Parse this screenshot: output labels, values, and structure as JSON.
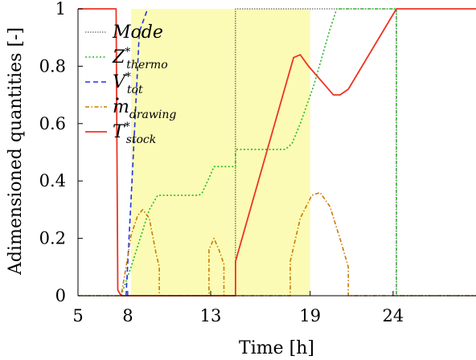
{
  "chart_data": {
    "type": "line",
    "title": "",
    "xlabel": "Time [h]",
    "ylabel": "Adimensioned quantities [-]",
    "xlim": [
      5,
      29
    ],
    "ylim": [
      0,
      1
    ],
    "xticks": [
      5,
      8,
      13,
      19,
      24
    ],
    "yticks": [
      0,
      0.2,
      0.4,
      0.6,
      0.8,
      1
    ],
    "ytick_labels": [
      "0",
      "0.2",
      "0.4",
      "0.6",
      "0.8",
      "1"
    ],
    "grid": false,
    "legend_position": "top-left",
    "highlight_band": {
      "x_range": [
        8.2,
        19
      ],
      "color": "#fbfbb5"
    },
    "series": [
      {
        "name": "Mode",
        "legend_main": "Mode",
        "legend_sub": "",
        "legend_dot": false,
        "color": "#000000",
        "dash": "1.5,1.5",
        "width": 0.8,
        "x": [
          5,
          7.5,
          7.5,
          14.5,
          14.5,
          24.2,
          24.2,
          29
        ],
        "y": [
          0,
          0,
          0,
          0,
          1,
          1,
          0,
          0
        ]
      },
      {
        "name": "Z*_thermo",
        "legend_main": "Z",
        "legend_sub": "thermo",
        "legend_dot": false,
        "color": "#22bb22",
        "dash": "2,2.5",
        "width": 1.6,
        "x": [
          5,
          7.6,
          8.2,
          9.3,
          9.8,
          12.3,
          12.5,
          12.9,
          13.2,
          14.5,
          14.5,
          17.5,
          17.9,
          18.4,
          19.2,
          20.2,
          20.6,
          24.2,
          24.2,
          29
        ],
        "y": [
          0,
          0,
          0.1,
          0.3,
          0.35,
          0.35,
          0.36,
          0.41,
          0.45,
          0.45,
          0.51,
          0.51,
          0.53,
          0.6,
          0.73,
          0.93,
          1,
          1,
          0,
          0
        ]
      },
      {
        "name": "V*_tot",
        "legend_main": "V",
        "legend_sub": "tot",
        "legend_dot": false,
        "color": "#2233dd",
        "dash": "6,4",
        "width": 1.6,
        "x": [
          7.9,
          8.3,
          8.7,
          9.2
        ],
        "y": [
          0,
          0.45,
          0.92,
          1
        ]
      },
      {
        "name": "m_drawing",
        "legend_main": "m",
        "legend_sub": "drawing",
        "legend_dot": true,
        "color": "#cc7a00",
        "dash": "5,2.5,1.5,2.5",
        "width": 1.6,
        "x": [
          5,
          7.6,
          7.9,
          8.2,
          8.6,
          8.9,
          9.3,
          9.7,
          9.9,
          9.9,
          12.9,
          12.9,
          13.2,
          13.5,
          13.8,
          13.8,
          17.8,
          17.8,
          18.4,
          19.1,
          19.6,
          20.2,
          20.9,
          21.3,
          21.3,
          29
        ],
        "y": [
          0,
          0,
          0.1,
          0.21,
          0.28,
          0.3,
          0.27,
          0.15,
          0.1,
          0,
          0,
          0.16,
          0.2,
          0.16,
          0.11,
          0,
          0,
          0.12,
          0.27,
          0.35,
          0.36,
          0.31,
          0.18,
          0.1,
          0,
          0
        ]
      },
      {
        "name": "T*_stock",
        "legend_main": "T",
        "legend_sub": "stock",
        "legend_dot": false,
        "color": "#ee3322",
        "dash": "",
        "width": 1.8,
        "x": [
          5,
          7.3,
          7.4,
          7.6,
          8.5,
          14.5,
          14.5,
          18.0,
          18.4,
          18.9,
          19.8,
          20.4,
          20.8,
          21.3,
          24.2,
          29
        ],
        "y": [
          1,
          1,
          0.02,
          0,
          0,
          0,
          0.12,
          0.83,
          0.84,
          0.8,
          0.74,
          0.7,
          0.7,
          0.72,
          1,
          1
        ]
      }
    ]
  }
}
